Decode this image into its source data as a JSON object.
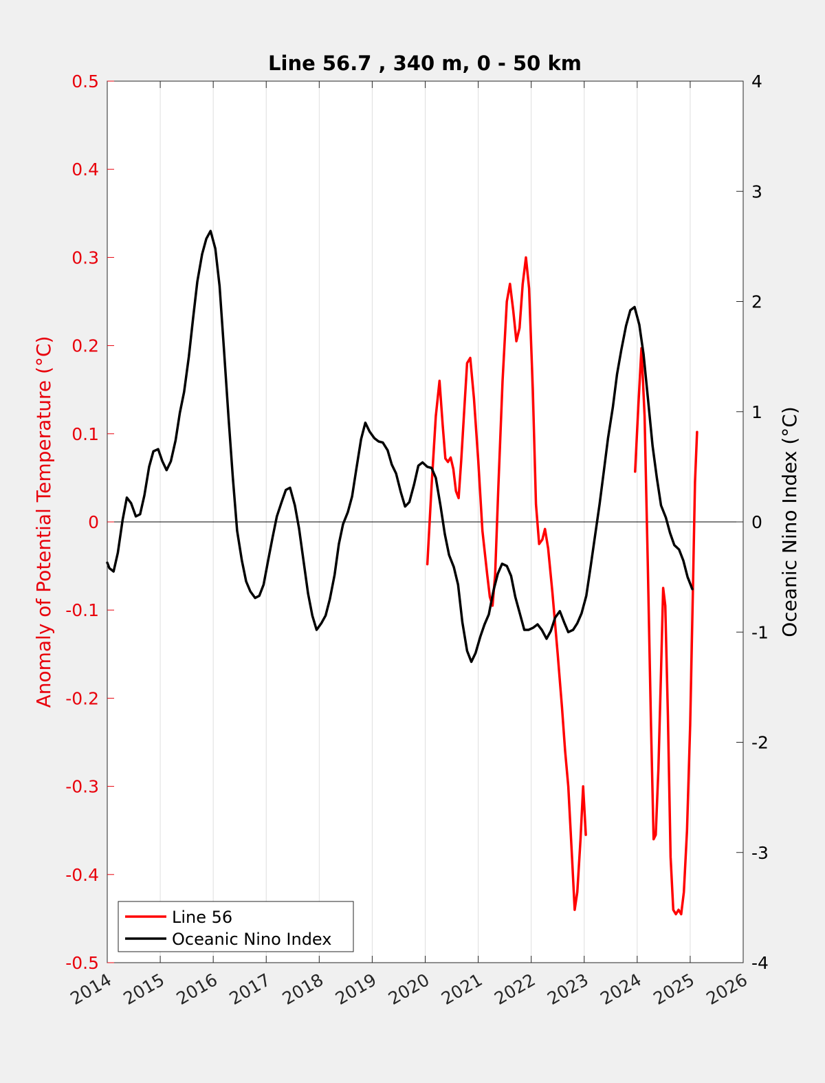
{
  "chart_data": {
    "type": "line",
    "title": "Line 56.7 , 340 m, 0 - 50 km",
    "xlabel": "",
    "ylabel_left": "Anomaly of Potential Temperature (°C)",
    "ylabel_right": "Oceanic Nino Index (°C)",
    "xlim": [
      2014,
      2026
    ],
    "ylim_left": [
      -0.5,
      0.5
    ],
    "ylim_right": [
      -4,
      4
    ],
    "x_ticks": [
      "2014",
      "2015",
      "2016",
      "2017",
      "2018",
      "2019",
      "2020",
      "2021",
      "2022",
      "2023",
      "2024",
      "2025",
      "2026"
    ],
    "y_ticks_left": [
      "-0.5",
      "-0.4",
      "-0.3",
      "-0.2",
      "-0.1",
      "0",
      "0.1",
      "0.2",
      "0.3",
      "0.4",
      "0.5"
    ],
    "y_ticks_right": [
      "-4",
      "-3",
      "-2",
      "-1",
      "0",
      "1",
      "2",
      "3",
      "4"
    ],
    "grid": "vertical",
    "legend_position": "bottom-left",
    "colors": {
      "left_axis": "#e8000b",
      "right_axis": "#000000",
      "background": "#f0f0f0"
    },
    "legend": [
      {
        "label": "Line 56",
        "color": "#ff0000"
      },
      {
        "label": "Oceanic Nino Index",
        "color": "#000000"
      }
    ],
    "series": [
      {
        "name": "Line 56",
        "axis": "left",
        "color": "#ff0000",
        "segments": [
          [
            [
              2020.04,
              -0.048
            ],
            [
              2020.12,
              0.04
            ],
            [
              2020.2,
              0.12
            ],
            [
              2020.27,
              0.16
            ],
            [
              2020.33,
              0.11
            ],
            [
              2020.38,
              0.072
            ],
            [
              2020.43,
              0.068
            ],
            [
              2020.48,
              0.073
            ],
            [
              2020.53,
              0.06
            ],
            [
              2020.58,
              0.035
            ],
            [
              2020.63,
              0.027
            ],
            [
              2020.68,
              0.07
            ],
            [
              2020.74,
              0.13
            ],
            [
              2020.79,
              0.18
            ],
            [
              2020.85,
              0.186
            ],
            [
              2020.92,
              0.14
            ],
            [
              2021.0,
              0.07
            ],
            [
              2021.08,
              -0.01
            ],
            [
              2021.17,
              -0.06
            ],
            [
              2021.22,
              -0.085
            ],
            [
              2021.27,
              -0.095
            ],
            [
              2021.32,
              -0.06
            ],
            [
              2021.38,
              0.04
            ],
            [
              2021.46,
              0.16
            ],
            [
              2021.54,
              0.25
            ],
            [
              2021.6,
              0.27
            ],
            [
              2021.66,
              0.24
            ],
            [
              2021.72,
              0.205
            ],
            [
              2021.78,
              0.22
            ],
            [
              2021.84,
              0.27
            ],
            [
              2021.9,
              0.3
            ],
            [
              2021.96,
              0.265
            ],
            [
              2022.03,
              0.15
            ],
            [
              2022.09,
              0.02
            ],
            [
              2022.15,
              -0.025
            ],
            [
              2022.21,
              -0.02
            ],
            [
              2022.26,
              -0.008
            ],
            [
              2022.32,
              -0.03
            ],
            [
              2022.4,
              -0.08
            ],
            [
              2022.5,
              -0.15
            ],
            [
              2022.58,
              -0.21
            ],
            [
              2022.64,
              -0.26
            ],
            [
              2022.7,
              -0.3
            ],
            [
              2022.77,
              -0.38
            ],
            [
              2022.82,
              -0.44
            ],
            [
              2022.87,
              -0.42
            ],
            [
              2022.93,
              -0.36
            ],
            [
              2022.98,
              -0.3
            ],
            [
              2023.03,
              -0.355
            ]
          ],
          [
            [
              2023.96,
              0.057
            ],
            [
              2024.02,
              0.13
            ],
            [
              2024.08,
              0.197
            ],
            [
              2024.14,
              0.12
            ],
            [
              2024.2,
              -0.05
            ],
            [
              2024.26,
              -0.23
            ],
            [
              2024.31,
              -0.36
            ],
            [
              2024.35,
              -0.355
            ],
            [
              2024.4,
              -0.28
            ],
            [
              2024.45,
              -0.17
            ],
            [
              2024.49,
              -0.075
            ],
            [
              2024.53,
              -0.095
            ],
            [
              2024.58,
              -0.22
            ],
            [
              2024.63,
              -0.38
            ],
            [
              2024.68,
              -0.44
            ],
            [
              2024.73,
              -0.445
            ],
            [
              2024.78,
              -0.44
            ],
            [
              2024.83,
              -0.445
            ],
            [
              2024.88,
              -0.42
            ],
            [
              2024.94,
              -0.35
            ],
            [
              2025.0,
              -0.23
            ],
            [
              2025.05,
              -0.08
            ],
            [
              2025.09,
              0.045
            ],
            [
              2025.13,
              0.102
            ]
          ]
        ]
      },
      {
        "name": "Oceanic Nino Index",
        "axis": "right",
        "color": "#000000",
        "points": [
          [
            2014.0,
            -0.37
          ],
          [
            2014.04,
            -0.42
          ],
          [
            2014.12,
            -0.45
          ],
          [
            2014.2,
            -0.28
          ],
          [
            2014.29,
            0.02
          ],
          [
            2014.37,
            0.22
          ],
          [
            2014.45,
            0.17
          ],
          [
            2014.54,
            0.05
          ],
          [
            2014.62,
            0.07
          ],
          [
            2014.7,
            0.24
          ],
          [
            2014.79,
            0.5
          ],
          [
            2014.87,
            0.64
          ],
          [
            2014.96,
            0.66
          ],
          [
            2015.04,
            0.55
          ],
          [
            2015.12,
            0.47
          ],
          [
            2015.2,
            0.55
          ],
          [
            2015.29,
            0.74
          ],
          [
            2015.37,
            0.99
          ],
          [
            2015.45,
            1.18
          ],
          [
            2015.54,
            1.5
          ],
          [
            2015.62,
            1.85
          ],
          [
            2015.7,
            2.18
          ],
          [
            2015.79,
            2.43
          ],
          [
            2015.87,
            2.57
          ],
          [
            2015.95,
            2.64
          ],
          [
            2016.04,
            2.48
          ],
          [
            2016.12,
            2.14
          ],
          [
            2016.2,
            1.58
          ],
          [
            2016.29,
            0.94
          ],
          [
            2016.37,
            0.4
          ],
          [
            2016.45,
            -0.08
          ],
          [
            2016.54,
            -0.35
          ],
          [
            2016.62,
            -0.54
          ],
          [
            2016.7,
            -0.63
          ],
          [
            2016.79,
            -0.69
          ],
          [
            2016.87,
            -0.67
          ],
          [
            2016.95,
            -0.57
          ],
          [
            2017.04,
            -0.34
          ],
          [
            2017.12,
            -0.14
          ],
          [
            2017.2,
            0.05
          ],
          [
            2017.29,
            0.18
          ],
          [
            2017.37,
            0.29
          ],
          [
            2017.45,
            0.31
          ],
          [
            2017.54,
            0.15
          ],
          [
            2017.62,
            -0.06
          ],
          [
            2017.7,
            -0.34
          ],
          [
            2017.79,
            -0.65
          ],
          [
            2017.87,
            -0.85
          ],
          [
            2017.95,
            -0.98
          ],
          [
            2018.04,
            -0.92
          ],
          [
            2018.12,
            -0.85
          ],
          [
            2018.2,
            -0.7
          ],
          [
            2018.29,
            -0.48
          ],
          [
            2018.37,
            -0.2
          ],
          [
            2018.45,
            -0.02
          ],
          [
            2018.54,
            0.09
          ],
          [
            2018.62,
            0.23
          ],
          [
            2018.7,
            0.48
          ],
          [
            2018.79,
            0.75
          ],
          [
            2018.87,
            0.9
          ],
          [
            2018.95,
            0.82
          ],
          [
            2019.04,
            0.76
          ],
          [
            2019.12,
            0.73
          ],
          [
            2019.2,
            0.72
          ],
          [
            2019.29,
            0.65
          ],
          [
            2019.37,
            0.52
          ],
          [
            2019.45,
            0.44
          ],
          [
            2019.54,
            0.27
          ],
          [
            2019.62,
            0.14
          ],
          [
            2019.7,
            0.18
          ],
          [
            2019.79,
            0.34
          ],
          [
            2019.87,
            0.51
          ],
          [
            2019.95,
            0.54
          ],
          [
            2020.04,
            0.5
          ],
          [
            2020.12,
            0.49
          ],
          [
            2020.2,
            0.4
          ],
          [
            2020.29,
            0.14
          ],
          [
            2020.37,
            -0.11
          ],
          [
            2020.45,
            -0.3
          ],
          [
            2020.54,
            -0.41
          ],
          [
            2020.62,
            -0.57
          ],
          [
            2020.7,
            -0.91
          ],
          [
            2020.79,
            -1.17
          ],
          [
            2020.87,
            -1.27
          ],
          [
            2020.95,
            -1.19
          ],
          [
            2021.04,
            -1.04
          ],
          [
            2021.12,
            -0.93
          ],
          [
            2021.2,
            -0.84
          ],
          [
            2021.29,
            -0.62
          ],
          [
            2021.37,
            -0.47
          ],
          [
            2021.45,
            -0.38
          ],
          [
            2021.54,
            -0.4
          ],
          [
            2021.62,
            -0.49
          ],
          [
            2021.7,
            -0.68
          ],
          [
            2021.79,
            -0.84
          ],
          [
            2021.87,
            -0.98
          ],
          [
            2021.95,
            -0.98
          ],
          [
            2022.04,
            -0.96
          ],
          [
            2022.12,
            -0.93
          ],
          [
            2022.2,
            -0.98
          ],
          [
            2022.29,
            -1.06
          ],
          [
            2022.37,
            -0.99
          ],
          [
            2022.45,
            -0.87
          ],
          [
            2022.54,
            -0.81
          ],
          [
            2022.62,
            -0.91
          ],
          [
            2022.7,
            -1.0
          ],
          [
            2022.79,
            -0.98
          ],
          [
            2022.87,
            -0.92
          ],
          [
            2022.95,
            -0.83
          ],
          [
            2023.04,
            -0.67
          ],
          [
            2023.12,
            -0.41
          ],
          [
            2023.2,
            -0.14
          ],
          [
            2023.29,
            0.16
          ],
          [
            2023.37,
            0.46
          ],
          [
            2023.45,
            0.76
          ],
          [
            2023.54,
            1.04
          ],
          [
            2023.62,
            1.34
          ],
          [
            2023.7,
            1.56
          ],
          [
            2023.79,
            1.78
          ],
          [
            2023.87,
            1.92
          ],
          [
            2023.95,
            1.95
          ],
          [
            2024.04,
            1.79
          ],
          [
            2024.12,
            1.52
          ],
          [
            2024.2,
            1.13
          ],
          [
            2024.29,
            0.69
          ],
          [
            2024.37,
            0.4
          ],
          [
            2024.45,
            0.15
          ],
          [
            2024.54,
            0.04
          ],
          [
            2024.62,
            -0.1
          ],
          [
            2024.7,
            -0.21
          ],
          [
            2024.79,
            -0.25
          ],
          [
            2024.87,
            -0.35
          ],
          [
            2024.95,
            -0.5
          ],
          [
            2025.04,
            -0.61
          ]
        ]
      }
    ]
  }
}
